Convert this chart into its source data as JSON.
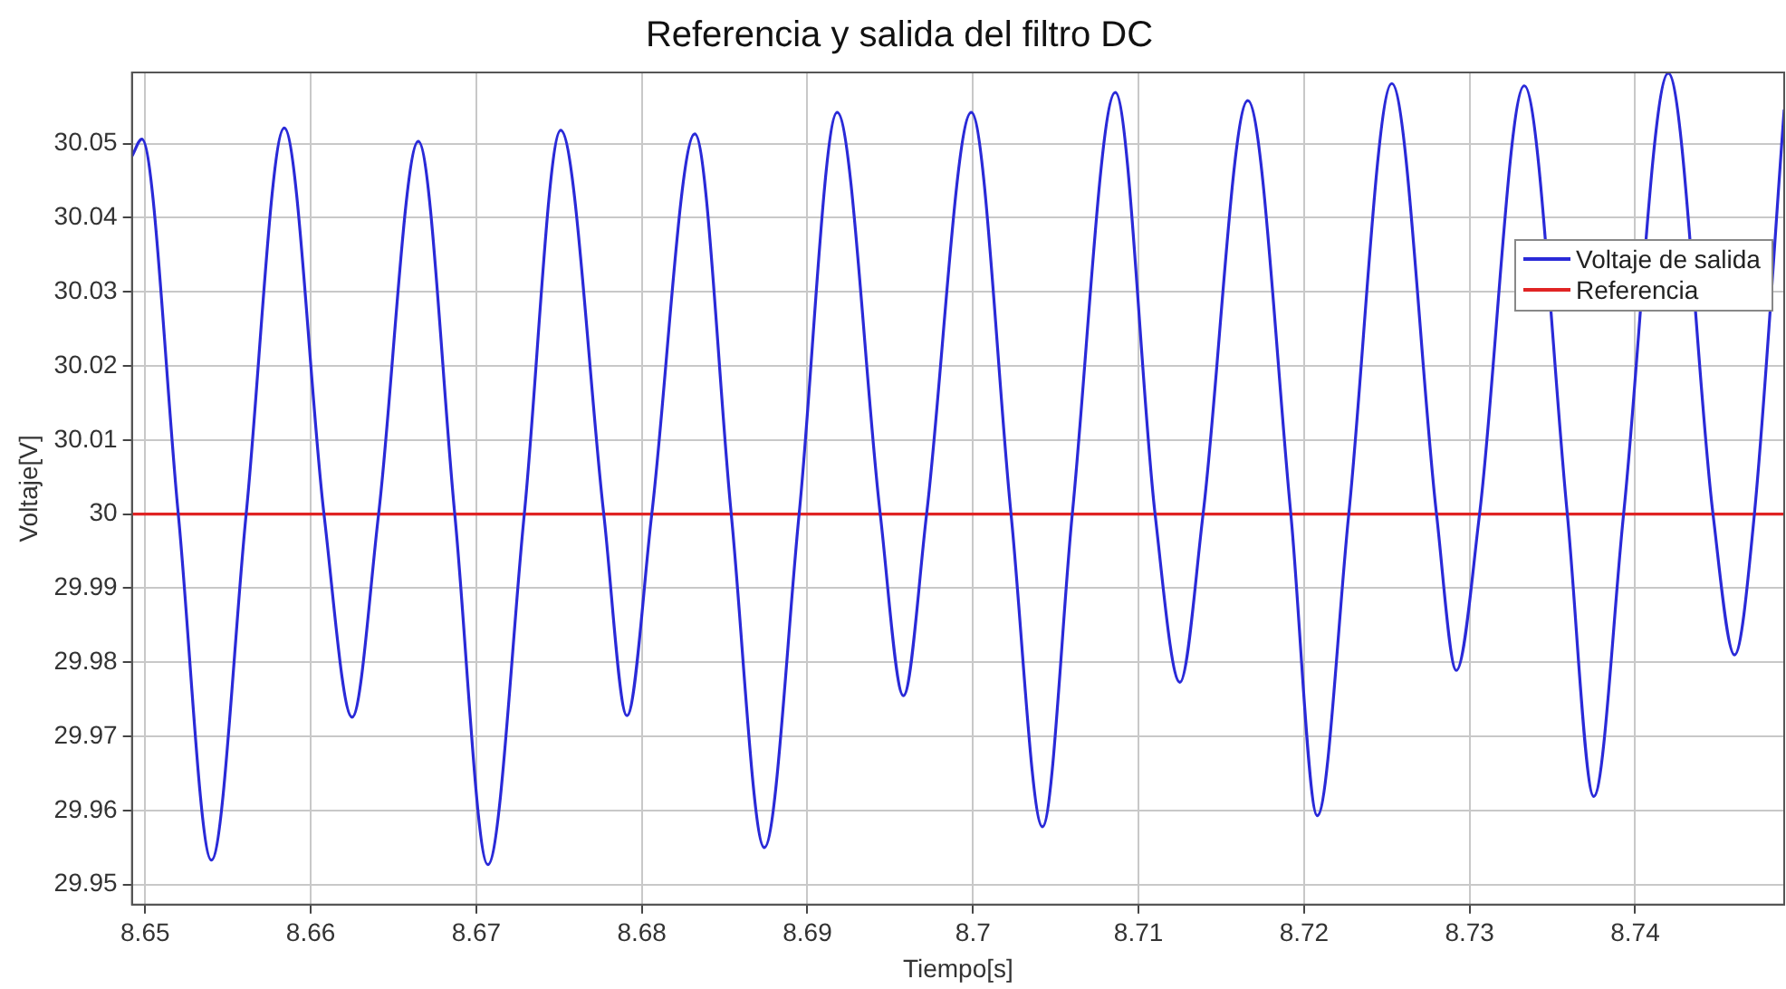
{
  "chart_data": {
    "type": "line",
    "title": "Referencia y salida del filtro DC",
    "xlabel": "Tiempo[s]",
    "ylabel": "Voltaje[V]",
    "xlim": [
      8.6492,
      8.749
    ],
    "ylim": [
      29.9473,
      30.0596
    ],
    "xticks": [
      8.65,
      8.66,
      8.67,
      8.68,
      8.69,
      8.7,
      8.71,
      8.72,
      8.73,
      8.74
    ],
    "yticks": [
      29.95,
      29.96,
      29.97,
      29.98,
      29.99,
      30,
      30.01,
      30.02,
      30.03,
      30.04,
      30.05
    ],
    "grid": true,
    "legend": "right",
    "line_style": "solid",
    "marker": "none",
    "series": [
      {
        "name": "Voltaje de salida",
        "color": "#2a2ad8",
        "x": [
          8.6492,
          8.6498,
          8.652,
          8.654,
          8.6561,
          8.6584,
          8.6608,
          8.6625,
          8.6641,
          8.6665,
          8.6687,
          8.6707,
          8.6729,
          8.6751,
          8.6777,
          8.6791,
          8.6806,
          8.6832,
          8.6854,
          8.6874,
          8.6895,
          8.6918,
          8.6944,
          8.6958,
          8.6972,
          8.6999,
          8.7023,
          8.7042,
          8.706,
          8.7086,
          8.711,
          8.7125,
          8.7139,
          8.7166,
          8.7192,
          8.7208,
          8.7227,
          8.7253,
          8.728,
          8.7292,
          8.7306,
          8.7333,
          8.7359,
          8.7375,
          8.7393,
          8.742,
          8.7447,
          8.746,
          8.7472,
          8.749
        ],
        "values": [
          30.0483,
          30.0506,
          30,
          29.9533,
          30,
          30.0521,
          30,
          29.9726,
          30,
          30.0503,
          30,
          29.9527,
          30,
          30.0518,
          30,
          29.9728,
          30,
          30.0513,
          30,
          29.955,
          30,
          30.0542,
          30,
          29.9755,
          30,
          30.0542,
          30,
          29.9578,
          30,
          30.0569,
          30,
          29.9773,
          30,
          30.0558,
          30,
          29.9593,
          30,
          30.0581,
          30,
          29.9789,
          30,
          30.0578,
          30,
          29.9619,
          30,
          30.0595,
          30,
          29.981,
          30,
          30.0546
        ]
      },
      {
        "name": "Referencia",
        "color": "#e02424",
        "x": [
          8.6492,
          8.749
        ],
        "values": [
          30,
          30
        ]
      }
    ]
  }
}
